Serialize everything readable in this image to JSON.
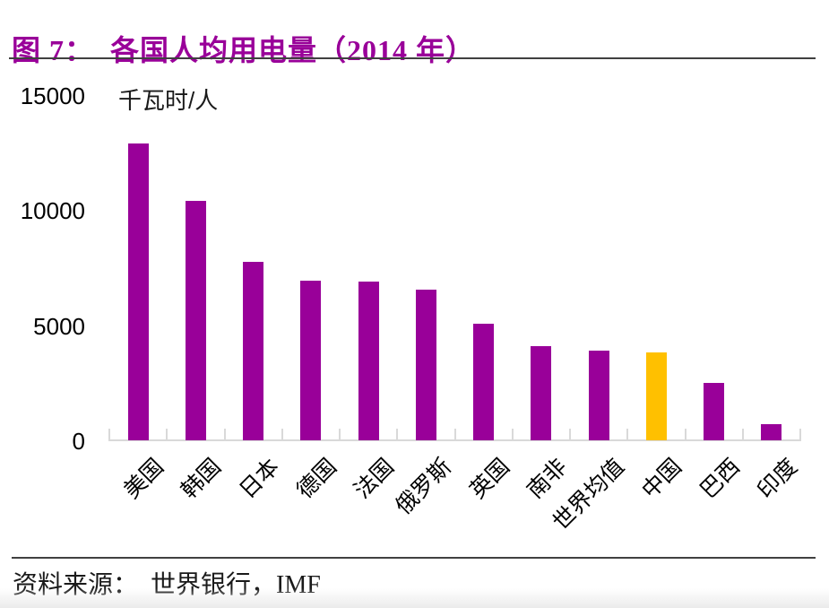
{
  "header": {
    "title": "图 7：  各国人均用电量（2014 年）"
  },
  "chart_data": {
    "type": "bar",
    "title": "各国人均用电量（2014 年）",
    "unit_label": "千瓦时/人",
    "xlabel": "",
    "ylabel": "千瓦时/人",
    "categories": [
      "美国",
      "韩国",
      "日本",
      "德国",
      "法国",
      "俄罗斯",
      "英国",
      "南非",
      "世界均值",
      "中国",
      "巴西",
      "印度"
    ],
    "values": [
      12900,
      10400,
      7750,
      6950,
      6900,
      6550,
      5050,
      4100,
      3900,
      3800,
      2500,
      700
    ],
    "ylim": [
      0,
      15000
    ],
    "yticks": [
      0,
      5000,
      10000,
      15000
    ],
    "grid": false,
    "legend": "none",
    "bar_color": "#990099",
    "highlight": {
      "category": "中国",
      "color": "#FFC000"
    },
    "axis_color": "#D9D9D9",
    "tick_label_color": "#000000"
  },
  "footer": {
    "source": "资料来源：  世界银行，IMF"
  }
}
